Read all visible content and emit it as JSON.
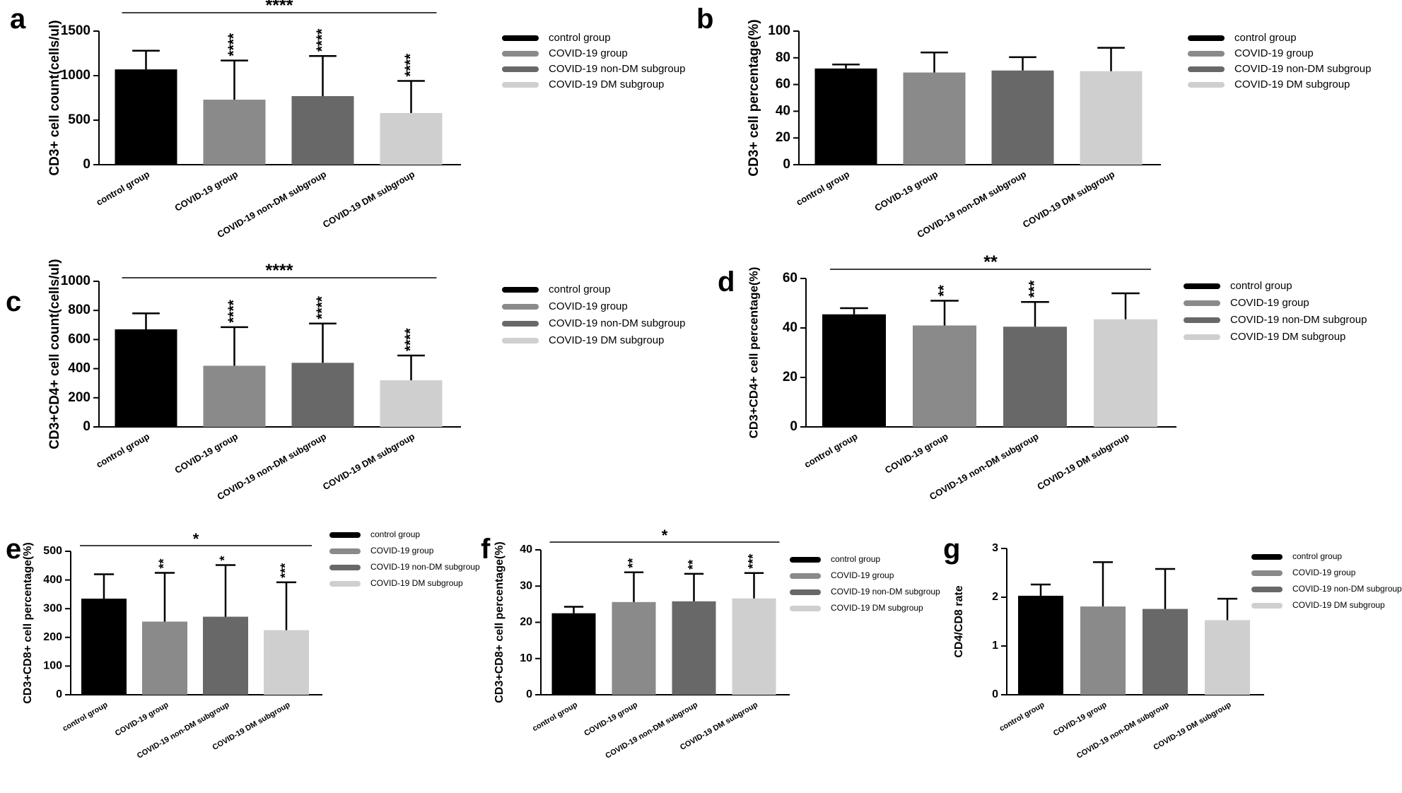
{
  "colors": {
    "control": "#000000",
    "covid": "#8a8a8a",
    "nondm": "#686868",
    "dm": "#cfcfcf",
    "axis": "#000000"
  },
  "chart_data": [
    {
      "panel": "a",
      "type": "bar",
      "ylabel": "CD3+ cell count(cells/ul)",
      "ylim": [
        0,
        1500
      ],
      "yticks": [
        0,
        500,
        1000,
        1500
      ],
      "categories": [
        "control group",
        "COVID-19 group",
        "COVID-19 non-DM subgroup",
        "COVID-19 DM subgroup"
      ],
      "values": [
        1070,
        730,
        770,
        580
      ],
      "errors": [
        210,
        440,
        450,
        360
      ],
      "bar_stars": [
        "",
        "****",
        "****",
        "****"
      ],
      "bracket_stars": "****",
      "legend": [
        "control group",
        "COVID-19 group",
        "COVID-19 non-DM subgroup",
        "COVID-19 DM subgroup"
      ]
    },
    {
      "panel": "b",
      "type": "bar",
      "ylabel": "CD3+ cell percentage(%)",
      "ylim": [
        0,
        100
      ],
      "yticks": [
        0,
        20,
        40,
        60,
        80,
        100
      ],
      "categories": [
        "control group",
        "COVID-19 group",
        "COVID-19 non-DM subgroup",
        "COVID-19 DM subgroup"
      ],
      "values": [
        72,
        69,
        70.5,
        70
      ],
      "errors": [
        3,
        15,
        10,
        17.5
      ],
      "bar_stars": [
        "",
        "",
        "",
        ""
      ],
      "bracket_stars": "",
      "legend": [
        "control group",
        "COVID-19 group",
        "COVID-19 non-DM subgroup",
        "COVID-19 DM subgroup"
      ]
    },
    {
      "panel": "c",
      "type": "bar",
      "ylabel": "CD3+CD4+ cell count(cells/ul)",
      "ylim": [
        0,
        1000
      ],
      "yticks": [
        0,
        200,
        400,
        600,
        800,
        1000
      ],
      "categories": [
        "control group",
        "COVID-19 group",
        "COVID-19 non-DM subgroup",
        "COVID-19 DM subgroup"
      ],
      "values": [
        670,
        420,
        440,
        320
      ],
      "errors": [
        110,
        265,
        270,
        170
      ],
      "bar_stars": [
        "",
        "****",
        "****",
        "****"
      ],
      "bracket_stars": "****",
      "legend": [
        "control group",
        "COVID-19 group",
        "COVID-19 non-DM subgroup",
        "COVID-19 DM subgroup"
      ]
    },
    {
      "panel": "d",
      "type": "bar",
      "ylabel": "CD3+CD4+ cell percentage(%)",
      "ylim": [
        0,
        60
      ],
      "yticks": [
        0,
        20,
        40,
        60
      ],
      "categories": [
        "control group",
        "COVID-19 group",
        "COVID-19 non-DM subgroup",
        "COVID-19 DM subgroup"
      ],
      "values": [
        45.5,
        41,
        40.5,
        43.5
      ],
      "errors": [
        2.5,
        10,
        10,
        10.5
      ],
      "bar_stars": [
        "",
        "**",
        "***",
        ""
      ],
      "bracket_stars": "**",
      "legend": [
        "control group",
        "COVID-19 group",
        "COVID-19 non-DM subgroup",
        "COVID-19 DM subgroup"
      ]
    },
    {
      "panel": "e",
      "type": "bar",
      "ylabel": "CD3+CD8+ cell percentage(%)",
      "ylim": [
        0,
        500
      ],
      "yticks": [
        0,
        100,
        200,
        300,
        400,
        500
      ],
      "categories": [
        "control group",
        "COVID-19 group",
        "COVID-19 non-DM subgroup",
        "COVID-19 DM subgroup"
      ],
      "values": [
        335,
        255,
        272,
        225
      ],
      "errors": [
        85,
        170,
        180,
        167
      ],
      "bar_stars": [
        "",
        "**",
        "*",
        "***"
      ],
      "bracket_stars": "*",
      "legend": [
        "control group",
        "COVID-19 group",
        "COVID-19 non-DM subgroup",
        "COVID-19 DM subgroup"
      ]
    },
    {
      "panel": "f",
      "type": "bar",
      "ylabel": "CD3+CD8+ cell percentage(%)",
      "ylim": [
        0,
        40
      ],
      "yticks": [
        0,
        10,
        20,
        30,
        40
      ],
      "categories": [
        "control group",
        "COVID-19 group",
        "COVID-19 non-DM subgroup",
        "COVID-19 DM subgroup"
      ],
      "values": [
        22.5,
        25.6,
        25.8,
        26.6
      ],
      "errors": [
        1.8,
        8.2,
        7.6,
        7
      ],
      "bar_stars": [
        "",
        "**",
        "**",
        "***"
      ],
      "bracket_stars": "*",
      "legend": [
        "control group",
        "COVID-19 group",
        "COVID-19 non-DM subgroup",
        "COVID-19 DM subgroup"
      ]
    },
    {
      "panel": "g",
      "type": "bar",
      "ylabel": "CD4/CD8 rate",
      "ylim": [
        0,
        3
      ],
      "yticks": [
        0,
        1,
        2,
        3
      ],
      "categories": [
        "control group",
        "COVID-19 group",
        "COVID-19 non-DM subgroup",
        "COVID-19 DM subgroup"
      ],
      "values": [
        2.03,
        1.81,
        1.76,
        1.53
      ],
      "errors": [
        0.23,
        0.91,
        0.82,
        0.44
      ],
      "bar_stars": [
        "",
        "",
        "",
        ""
      ],
      "bracket_stars": "",
      "legend": [
        "control group",
        "COVID-19 group",
        "COVID-19 non-DM subgroup",
        "COVID-19 DM subgroup"
      ]
    }
  ]
}
